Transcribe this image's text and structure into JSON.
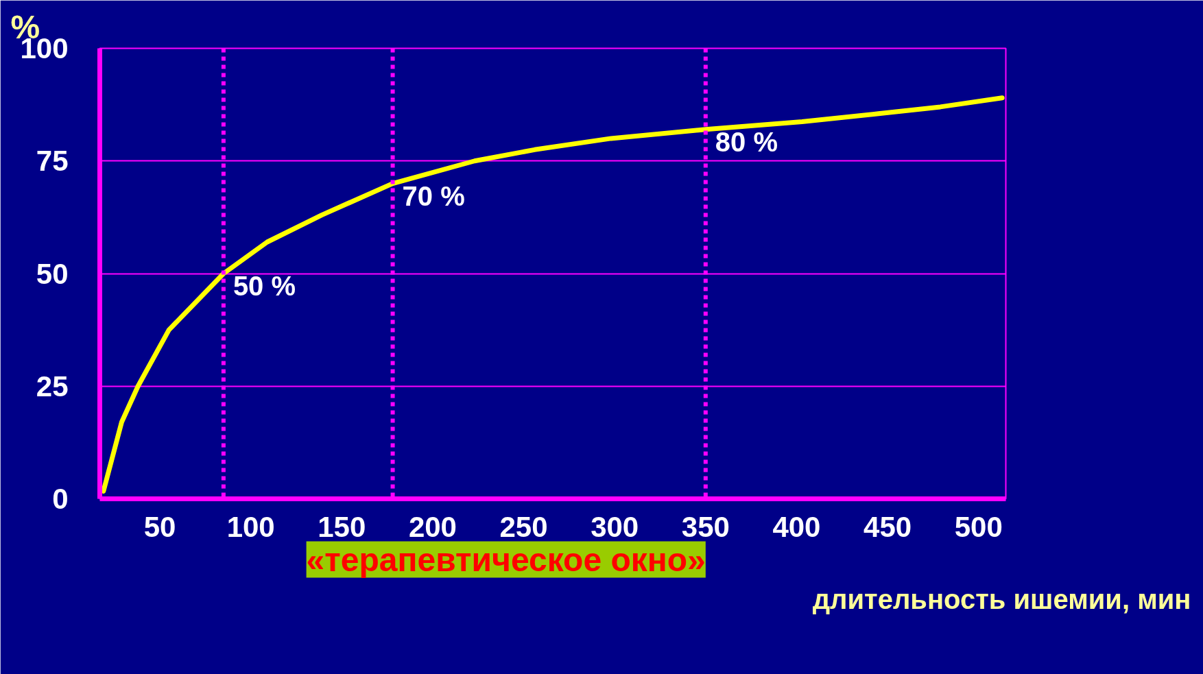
{
  "chart_data": {
    "type": "line",
    "xlabel": "длительность ишемии, мин",
    "ylabel": "%",
    "x": [
      19,
      29,
      38,
      55,
      85,
      109,
      139,
      178,
      223,
      256,
      298,
      350,
      403,
      445,
      479,
      513
    ],
    "series": [
      {
        "color": "#ffff00",
        "values": [
          1.7,
          17,
          25,
          37.5,
          50,
          57,
          63,
          70,
          75,
          77.5,
          80,
          82,
          83.7,
          85.5,
          87,
          89
        ]
      }
    ],
    "xlim": [
      17,
      515
    ],
    "ylim": [
      0,
      100
    ],
    "xticks": [
      50,
      100,
      150,
      200,
      250,
      300,
      350,
      400,
      450,
      500
    ],
    "yticks": [
      0,
      25,
      50,
      75,
      100
    ],
    "grid": "y",
    "marker": "none",
    "line_style": "solid",
    "ref_lines": [
      {
        "axis": "x",
        "value": 85,
        "color": "#ff00ff",
        "line_style": "dashed"
      },
      {
        "axis": "x",
        "value": 178,
        "color": "#ff00ff",
        "line_style": "dashed"
      },
      {
        "axis": "x",
        "value": 350,
        "color": "#ff00ff",
        "line_style": "dashed"
      }
    ],
    "annotations": [
      {
        "text": "50 %",
        "x": 85,
        "y": 50
      },
      {
        "text": "70 %",
        "x": 178,
        "y": 70
      },
      {
        "text": "80 %",
        "x": 350,
        "y": 82
      },
      "«терапевтическое окно»"
    ]
  }
}
